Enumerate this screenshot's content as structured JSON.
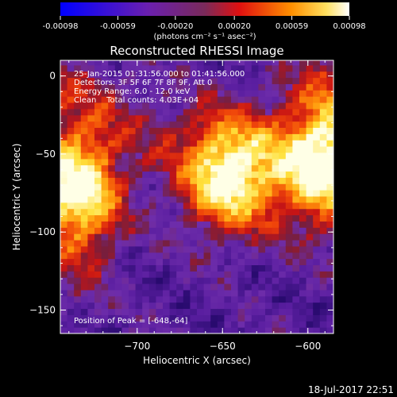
{
  "colorbar": {
    "ticks": [
      "-0.00098",
      "-0.00059",
      "-0.00020",
      "0.00020",
      "0.00059",
      "0.00098"
    ],
    "units": "(photons cm⁻² s⁻¹ asec⁻²)",
    "range": [
      -0.00098,
      0.00098
    ]
  },
  "chart_data": {
    "type": "heatmap",
    "title": "Reconstructed RHESSI Image",
    "xlabel": "Heliocentric X (arcsec)",
    "ylabel": "Heliocentric Y (arcsec)",
    "xlim": [
      -745,
      -585
    ],
    "ylim": [
      -165,
      10
    ],
    "xticks": [
      {
        "value": -700,
        "label": "−700"
      },
      {
        "value": -650,
        "label": "−650"
      },
      {
        "value": -600,
        "label": "−600"
      }
    ],
    "yticks": [
      {
        "value": 0,
        "label": "0"
      },
      {
        "value": -50,
        "label": "−50"
      },
      {
        "value": -100,
        "label": "−100"
      },
      {
        "value": -150,
        "label": "−150"
      }
    ],
    "annotations": [
      "25-Jan-2015 01:31:56.000 to 01:41:56.000",
      "Detectors: 3F 5F 6F 7F 8F 9F, Att 0",
      "Energy Range: 6.0 - 12.0 keV",
      "Clean    Total counts: 4.03E+04"
    ],
    "peak_label": "Position of Peak = [-648,-64]",
    "peak": [
      -648,
      -64
    ],
    "colorscale": "rainbow (blue-purple-red-orange-yellow-white)",
    "sources": [
      {
        "x": -648,
        "y": -64,
        "amplitude": 1.0
      },
      {
        "x": -592,
        "y": -60,
        "amplitude": 0.95
      },
      {
        "x": -740,
        "y": -72,
        "amplitude": 0.8
      }
    ]
  },
  "footer": {
    "date": "18-Jul-2017 22:51"
  }
}
